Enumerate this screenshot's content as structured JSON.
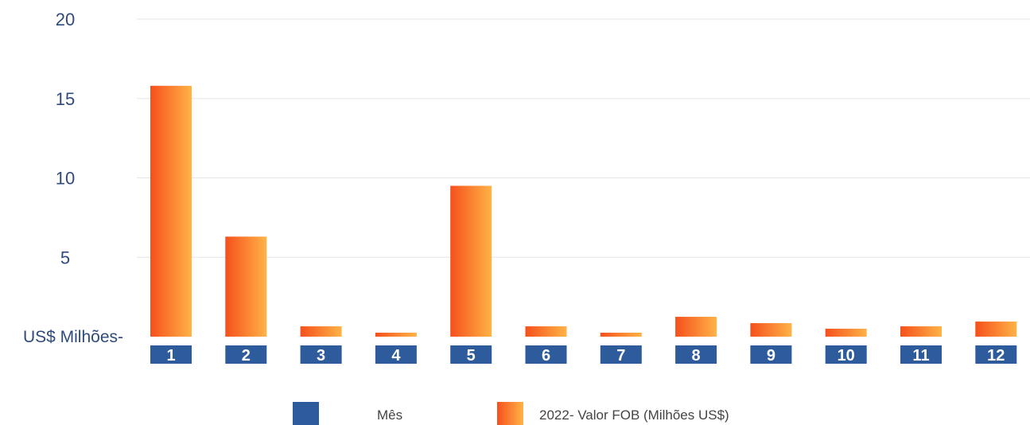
{
  "chart_data": {
    "type": "bar",
    "title": "",
    "ylabel": "US$ Milhões-",
    "ylim": [
      0,
      20
    ],
    "yticks": [
      5,
      10,
      15,
      20
    ],
    "grid": true,
    "categories": [
      "1",
      "2",
      "3",
      "4",
      "5",
      "6",
      "7",
      "8",
      "9",
      "10",
      "11",
      "12"
    ],
    "series": [
      {
        "name": "2022- Valor FOB (Milhões US$)",
        "values": [
          15.8,
          6.3,
          0.65,
          0.25,
          9.5,
          0.65,
          0.25,
          1.25,
          0.85,
          0.5,
          0.65,
          0.95
        ]
      }
    ],
    "legend": {
      "placement": "bottom",
      "entries": [
        "Mês",
        "2022- Valor FOB (Milhões US$)"
      ]
    },
    "colors": {
      "bar_start": "#f5501c",
      "bar_end": "#ffb347",
      "month_box": "#2d5b9c",
      "axis_text": "#2f4b7c",
      "grid": "#e6e6e6"
    }
  }
}
